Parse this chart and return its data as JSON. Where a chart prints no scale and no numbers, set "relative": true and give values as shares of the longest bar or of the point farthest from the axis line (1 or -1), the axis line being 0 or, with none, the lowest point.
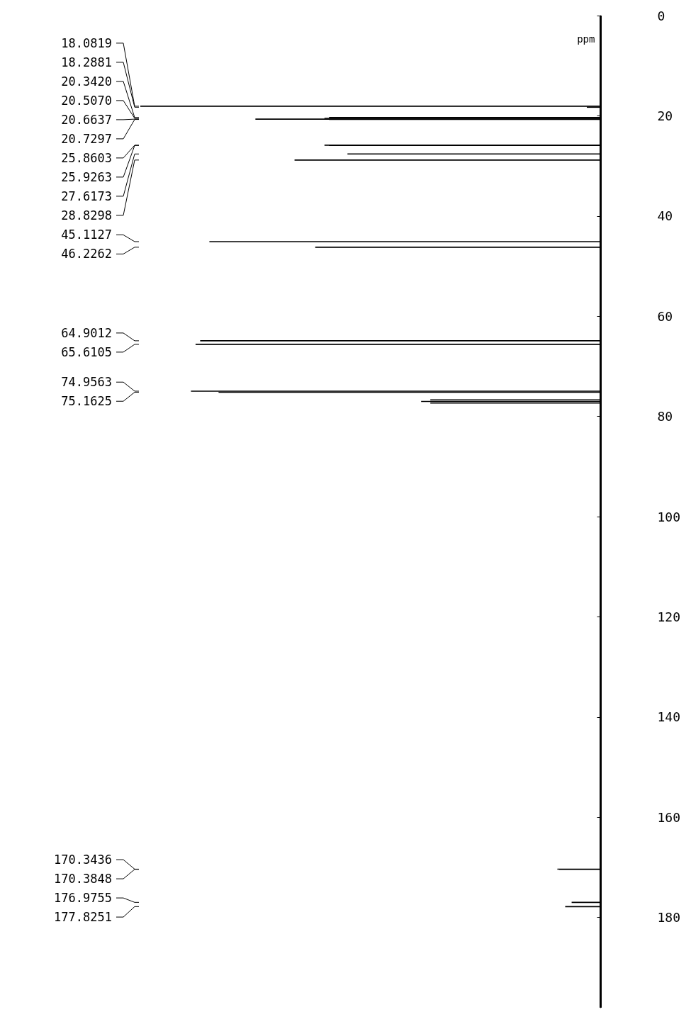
{
  "chart_data": {
    "type": "bar",
    "orientation": "horizontal",
    "relative": true,
    "ylabel": "ppm",
    "ylim": [
      198,
      0
    ],
    "yticks": [
      0,
      20,
      40,
      60,
      80,
      100,
      120,
      140,
      160,
      180
    ],
    "color": "#000000",
    "x": [
      18.0819,
      18.2881,
      20.342,
      20.507,
      20.6637,
      20.7297,
      25.8603,
      25.9263,
      27.6173,
      28.8298,
      45.1127,
      46.2262,
      64.9012,
      65.6105,
      74.9563,
      75.1625,
      76.68,
      77.0,
      77.32,
      170.3436,
      170.3848,
      176.9755,
      177.8251
    ],
    "values": [
      1.0,
      0.03,
      0.59,
      0.6,
      0.75,
      0.59,
      0.6,
      0.59,
      0.55,
      0.665,
      0.85,
      0.62,
      0.87,
      0.88,
      0.89,
      0.83,
      0.37,
      0.39,
      0.37,
      0.094,
      0.09,
      0.063,
      0.077
    ],
    "annotations": [
      "18.0819",
      "18.2881",
      "20.3420",
      "20.5070",
      "20.6637",
      "20.7297",
      "25.8603",
      "25.9263",
      "27.6173",
      "28.8298",
      "45.1127",
      "46.2262",
      "64.9012",
      "65.6105",
      "74.9563",
      "75.1625",
      "170.3436",
      "170.3848",
      "176.9755",
      "177.8251"
    ]
  }
}
